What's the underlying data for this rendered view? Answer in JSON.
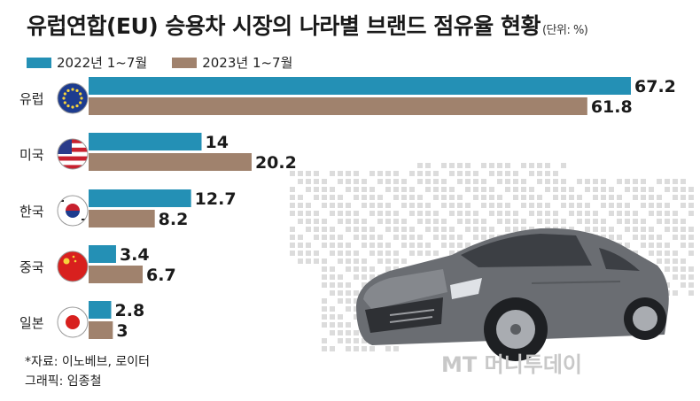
{
  "title": "유럽연합(EU) 승용차 시장의 나라별 브랜드 점유율 현황",
  "unit_label": "(단위: %)",
  "legend": [
    {
      "label": "2022년 1~7월",
      "color": "#2490b5"
    },
    {
      "label": "2023년 1~7월",
      "color": "#a0826d"
    }
  ],
  "chart_data": {
    "type": "bar",
    "orientation": "horizontal",
    "categories": [
      "유럽",
      "미국",
      "한국",
      "중국",
      "일본"
    ],
    "series": [
      {
        "name": "2022년 1~7월",
        "values": [
          67.2,
          14,
          12.7,
          3.4,
          2.8
        ],
        "value_labels": [
          "67.2",
          "14",
          "12.7",
          "3.4",
          "2.8"
        ]
      },
      {
        "name": "2023년 1~7월",
        "values": [
          61.8,
          20.2,
          8.2,
          6.7,
          3
        ],
        "value_labels": [
          "61.8",
          "20.2",
          "8.2",
          "6.7",
          "3"
        ]
      }
    ],
    "xlim": [
      0,
      67.2
    ],
    "grid": false,
    "legend_position": "top-left"
  },
  "flag_icons": [
    "eu-flag-icon",
    "us-flag-icon",
    "korea-flag-icon",
    "china-flag-icon",
    "japan-flag-icon"
  ],
  "source": {
    "line1": "*자료: 이노베브, 로이터",
    "line2": "그래픽: 임종철"
  },
  "watermark": "MT 머니투데이"
}
